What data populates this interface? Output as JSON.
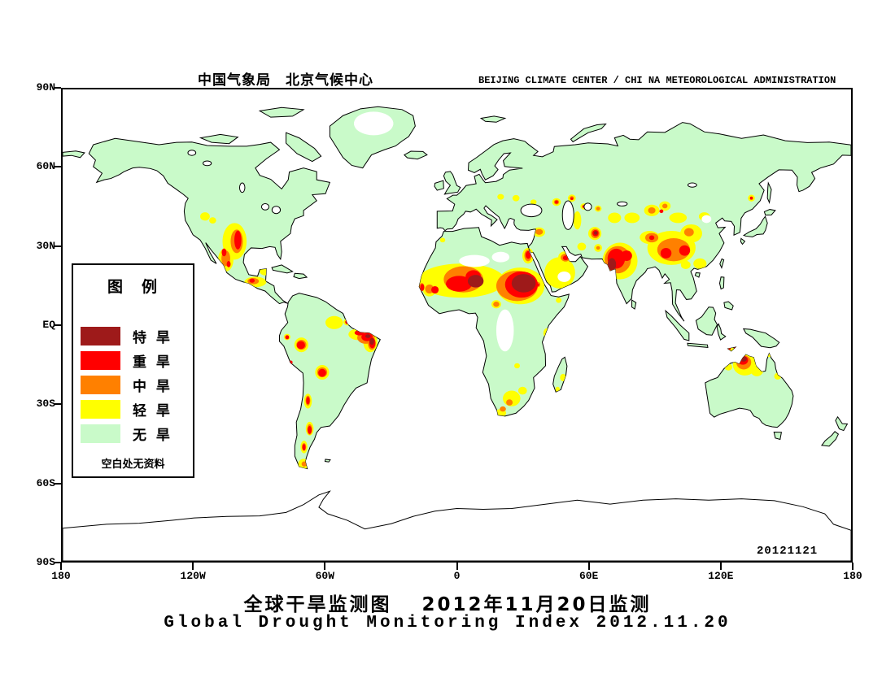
{
  "header": {
    "agency_cn": "中国气象局　北京气候中心",
    "agency_en": "BEIJING CLIMATE CENTER / CHI NA METEOROLOGICAL ADMINISTRATION"
  },
  "footer": {
    "title_cn": "全球干旱监测图　 2012年11月20日监测",
    "title_en": "Global Drought Monitoring Index  2012.11.20"
  },
  "legend": {
    "title": "图　例",
    "note": "空白处无资料",
    "items": [
      {
        "label": "特 旱",
        "severity": "darkred",
        "color": "#9E1A1A"
      },
      {
        "label": "重 旱",
        "severity": "red",
        "color": "#FF0000"
      },
      {
        "label": "中 旱",
        "severity": "orange",
        "color": "#FF8000"
      },
      {
        "label": "轻 旱",
        "severity": "yellow",
        "color": "#FFFF00"
      },
      {
        "label": "无 旱",
        "severity": "none",
        "color": "#C9FAC9"
      }
    ]
  },
  "map": {
    "stamp": "20121121",
    "colors": {
      "land": "#C9FAC9",
      "nodata": "#FFFFFF",
      "yellow": "#FFFF00",
      "orange": "#FF8000",
      "red": "#FF0000",
      "darkred": "#9E1A1A"
    },
    "axes": {
      "lat": [
        "90N",
        "60N",
        "30N",
        "EQ",
        "30S",
        "60S",
        "90S"
      ],
      "lon": [
        "180",
        "120W",
        "60W",
        "0",
        "60E",
        "120E",
        "180"
      ]
    },
    "drought": {
      "yellow": [
        [
          -115,
          41.5,
          2.2,
          1.6
        ],
        [
          -111.5,
          40,
          1.6,
          1.2
        ],
        [
          -101.5,
          32,
          5.5,
          7
        ],
        [
          -105.5,
          25,
          3.5,
          4.5
        ],
        [
          -92,
          16.5,
          5,
          2
        ],
        [
          -87.5,
          20.5,
          2.5,
          1.5
        ],
        [
          -71,
          -7.5,
          3.2,
          2.8
        ],
        [
          -77.5,
          -4.5,
          1.5,
          1.2
        ],
        [
          -61.5,
          -18,
          3.2,
          2.8
        ],
        [
          -56,
          1,
          4,
          2.5
        ],
        [
          -50,
          1.2,
          1.8,
          1.3
        ],
        [
          -45,
          -3.5,
          4.5,
          2.2
        ],
        [
          -39.5,
          -6.5,
          3.2,
          3.8
        ],
        [
          -68,
          -29,
          1.8,
          2.8
        ],
        [
          -67.2,
          -39.5,
          1.8,
          2.6
        ],
        [
          -69.8,
          -46.5,
          1.6,
          2.4
        ],
        [
          -70,
          -53,
          2.4,
          2
        ],
        [
          2,
          17,
          20,
          6.5
        ],
        [
          29,
          15,
          11,
          7
        ],
        [
          18,
          8,
          2.2,
          1.6
        ],
        [
          -12.5,
          13.5,
          3,
          2.5
        ],
        [
          -6.5,
          32.5,
          1.2,
          0.9
        ],
        [
          41,
          -3,
          1.5,
          1.8
        ],
        [
          46.5,
          9.5,
          1.3,
          1
        ],
        [
          48.5,
          -20,
          1.4,
          1.4
        ],
        [
          46,
          -24.5,
          1,
          1
        ],
        [
          27.5,
          -15.5,
          1.3,
          1
        ],
        [
          25,
          -28,
          4,
          3
        ],
        [
          20,
          -33.5,
          2.5,
          1.5
        ],
        [
          30,
          -25,
          2,
          1.5
        ],
        [
          37,
          15.5,
          1.8,
          1.6
        ],
        [
          32.5,
          26.5,
          2.6,
          3
        ],
        [
          47,
          20,
          7,
          6
        ],
        [
          49.5,
          26,
          3.2,
          2.2
        ],
        [
          37.5,
          35.5,
          2.8,
          1.8
        ],
        [
          57,
          30,
          2,
          1.5
        ],
        [
          55,
          40,
          1.8,
          3.5
        ],
        [
          20,
          49,
          1.5,
          1.1
        ],
        [
          27,
          48.5,
          1.6,
          1.2
        ],
        [
          35,
          47,
          1.4,
          1
        ],
        [
          45.5,
          47,
          2,
          1.5
        ],
        [
          52.5,
          48.5,
          1.8,
          1.4
        ],
        [
          58,
          45.3,
          1.6,
          1.2
        ],
        [
          64.5,
          44.5,
          1.6,
          1.2
        ],
        [
          63,
          35,
          3,
          2.5
        ],
        [
          64.5,
          29.5,
          1.8,
          1.5
        ],
        [
          72,
          41,
          3,
          2
        ],
        [
          80,
          41,
          3.5,
          2
        ],
        [
          89,
          43.8,
          3.5,
          2.2
        ],
        [
          95,
          45.5,
          2.6,
          1.8
        ],
        [
          74.5,
          24.5,
          8,
          7
        ],
        [
          98,
          29.5,
          11,
          6.5
        ],
        [
          88,
          33.5,
          4.5,
          2.5
        ],
        [
          107,
          35,
          5,
          3.5
        ],
        [
          111,
          23.5,
          3,
          2
        ],
        [
          104.5,
          23,
          2.2,
          1.6
        ],
        [
          101,
          41,
          4,
          2
        ],
        [
          113,
          41.5,
          2.5,
          1.6
        ],
        [
          134.5,
          48.5,
          1.6,
          1.3
        ],
        [
          131.5,
          -15,
          5.5,
          4.2
        ],
        [
          137,
          -17,
          3,
          2.5
        ],
        [
          146.5,
          -19.5,
          1.6,
          1.3
        ],
        [
          124,
          -16,
          1.8,
          1.3
        ],
        [
          142.5,
          -11,
          1.4,
          1.2
        ],
        [
          125,
          -9,
          1.4,
          0.9
        ]
      ],
      "orange": [
        [
          -100.5,
          32,
          2.8,
          4.5
        ],
        [
          -105.5,
          25.5,
          2,
          3
        ],
        [
          -93,
          16.8,
          2.6,
          1.2
        ],
        [
          -71,
          -7.5,
          2.3,
          1.9
        ],
        [
          -61.5,
          -18,
          2.3,
          1.9
        ],
        [
          -41.5,
          -4.8,
          4,
          2.3
        ],
        [
          -38.8,
          -7,
          1.8,
          2.4
        ],
        [
          -68,
          -28.8,
          1.1,
          1.9
        ],
        [
          -67.2,
          -39.8,
          1.2,
          2
        ],
        [
          -69.8,
          -46.5,
          1,
          1.5
        ],
        [
          -69.7,
          -53,
          1.2,
          1
        ],
        [
          3,
          17.5,
          9,
          5
        ],
        [
          27.5,
          15,
          9.5,
          5.8
        ],
        [
          18,
          8,
          1.4,
          1
        ],
        [
          -12.5,
          13.8,
          2,
          1.7
        ],
        [
          -16,
          14.5,
          1.2,
          1.6
        ],
        [
          32.5,
          26.6,
          1.7,
          2.2
        ],
        [
          49.6,
          25.8,
          2.2,
          1.5
        ],
        [
          37.6,
          35.6,
          1.7,
          1.1
        ],
        [
          37,
          15.5,
          1.1,
          1
        ],
        [
          45.5,
          47,
          1.2,
          0.9
        ],
        [
          52.5,
          48.5,
          1,
          0.8
        ],
        [
          63.2,
          35,
          2,
          1.8
        ],
        [
          64.5,
          29.5,
          0.9,
          0.7
        ],
        [
          58,
          45.3,
          0.9,
          0.7
        ],
        [
          64.5,
          44.5,
          0.9,
          0.7
        ],
        [
          89,
          43.8,
          1.7,
          1.2
        ],
        [
          95,
          45.5,
          1.2,
          0.9
        ],
        [
          73.5,
          25,
          6,
          5.2
        ],
        [
          99,
          28.8,
          7.5,
          4.4
        ],
        [
          89,
          33.4,
          3,
          1.8
        ],
        [
          106,
          35.5,
          2.2,
          1.6
        ],
        [
          131,
          -14.2,
          3.4,
          2.7
        ],
        [
          24,
          -29.5,
          1.5,
          1.2
        ],
        [
          21,
          -32,
          1.4,
          1
        ]
      ],
      "red": [
        [
          -100,
          32.5,
          1.6,
          3.6
        ],
        [
          -106.3,
          27.8,
          1.1,
          1.5
        ],
        [
          -104.2,
          23.3,
          0.9,
          1.2
        ],
        [
          -93.5,
          17,
          1.2,
          0.8
        ],
        [
          -71.2,
          -7.6,
          1.9,
          1.5
        ],
        [
          -77.5,
          -4.6,
          0.9,
          0.8
        ],
        [
          -61.5,
          -18.2,
          1.8,
          1.5
        ],
        [
          -50,
          1.2,
          1,
          0.8
        ],
        [
          -44.5,
          -2.9,
          2.2,
          1
        ],
        [
          -41,
          -4.5,
          2.6,
          1.6
        ],
        [
          -38.6,
          -6.8,
          1.4,
          2
        ],
        [
          -68,
          -28.8,
          0.8,
          1.4
        ],
        [
          -67.2,
          -40,
          0.9,
          1.5
        ],
        [
          -69.8,
          -46.6,
          0.7,
          1.2
        ],
        [
          -75.8,
          -14.2,
          0.8,
          0.7
        ],
        [
          -15.8,
          14.4,
          0.9,
          1.3
        ],
        [
          -10,
          13.5,
          1.7,
          1.4
        ],
        [
          1,
          15.8,
          6,
          3
        ],
        [
          7.5,
          18.5,
          3.5,
          2.5
        ],
        [
          29.5,
          15.5,
          7.5,
          5
        ],
        [
          32.6,
          26.8,
          1.2,
          1.5
        ],
        [
          37,
          15.4,
          0.6,
          0.5
        ],
        [
          49.7,
          25.7,
          1.3,
          0.9
        ],
        [
          45.5,
          47,
          0.7,
          0.6
        ],
        [
          52.5,
          48.3,
          0.6,
          0.5
        ],
        [
          58,
          45.3,
          0.5,
          0.45
        ],
        [
          63.3,
          35.1,
          1.4,
          1.2
        ],
        [
          72.8,
          25.4,
          4,
          3.8
        ],
        [
          77.5,
          26.5,
          2.5,
          2
        ],
        [
          95.5,
          27.5,
          2.5,
          2
        ],
        [
          104,
          28.5,
          2.5,
          2
        ],
        [
          89,
          33.4,
          1.2,
          0.9
        ],
        [
          93.4,
          43.5,
          0.9,
          0.7
        ],
        [
          134.5,
          48.5,
          0.7,
          0.6
        ],
        [
          130.6,
          -13.4,
          2.4,
          1.7
        ],
        [
          124.5,
          -9,
          0.6,
          0.4
        ],
        [
          127,
          -8.7,
          0.5,
          0.4
        ]
      ],
      "darkred": [
        [
          30.5,
          16,
          5.5,
          3.5
        ],
        [
          8.6,
          16.8,
          3.6,
          2.4
        ],
        [
          70.8,
          23.2,
          1.9,
          2.4
        ],
        [
          63.4,
          35.2,
          0.8,
          0.7
        ],
        [
          130.9,
          -12.9,
          1.5,
          1
        ],
        [
          -38.8,
          -6.2,
          1,
          1.3
        ],
        [
          -40.6,
          -4.2,
          1.2,
          0.7
        ]
      ]
    },
    "no_data": [
      [
        -38,
        77,
        9,
        4.5
      ],
      [
        22,
        -2,
        4,
        8
      ],
      [
        49,
        18.5,
        3,
        2
      ],
      [
        114,
        40.5,
        2.2,
        1.5
      ],
      [
        8,
        24.5,
        7,
        2.3
      ],
      [
        20,
        26,
        4,
        2
      ]
    ],
    "lakes": [
      [
        34,
        43.8,
        4.8,
        2.4
      ],
      [
        50.8,
        42,
        2.6,
        5.5
      ],
      [
        59.8,
        45.2,
        1.7,
        1.4
      ],
      [
        75.5,
        46.3,
        2.3,
        0.8
      ],
      [
        107.5,
        53.5,
        2,
        0.8
      ],
      [
        -87.5,
        45.2,
        1.7,
        1.2
      ],
      [
        -82.5,
        44,
        1.9,
        1.4
      ],
      [
        -121,
        65.8,
        1.8,
        1
      ],
      [
        -114,
        61.8,
        1.9,
        0.9
      ],
      [
        -98,
        52.5,
        1.2,
        1.8
      ]
    ]
  }
}
